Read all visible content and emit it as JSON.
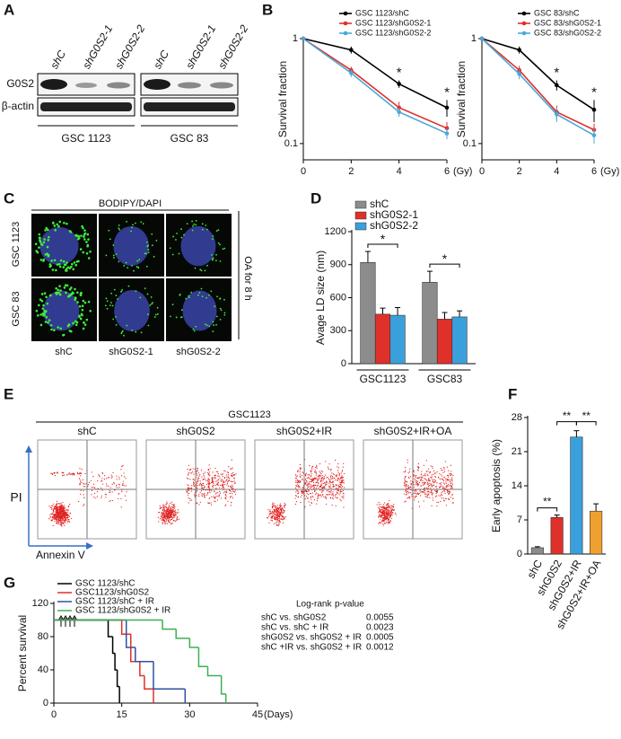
{
  "panel_labels": [
    "A",
    "B",
    "C",
    "D",
    "E",
    "F",
    "G"
  ],
  "blot": {
    "groups": [
      {
        "name": "GSC 1123",
        "lanes": [
          "shC",
          "shG0S2-1",
          "shG0S2-2"
        ]
      },
      {
        "name": "GSC 83",
        "lanes": [
          "shC",
          "shG0S2-1",
          "shG0S2-2"
        ]
      }
    ],
    "rows": [
      "G0S2",
      "β-actin"
    ]
  },
  "microscopy": {
    "title": "BODIPY/DAPI",
    "rows": [
      "GSC 1123",
      "GSC 83"
    ],
    "columns": [
      "shC",
      "shG0S2-1",
      "shG0S2-2"
    ],
    "side_label": "OA for 8 h"
  },
  "flow": {
    "group": "GSC1123",
    "columns": [
      "shC",
      "shG0S2",
      "shG0S2+IR",
      "shG0S2+IR+OA"
    ],
    "ylabel": "PI",
    "xlabel": "Annexin V"
  },
  "chart_data": [
    {
      "type": "line",
      "log_y": true,
      "ylabel": "Survival fraction",
      "xlabel": "(Gy)",
      "x": [
        0,
        2,
        4,
        6
      ],
      "xlim": [
        0,
        6
      ],
      "xticks": [
        0,
        2,
        4,
        6
      ],
      "ylim": [
        0.07,
        1
      ],
      "yticks": [
        0.1,
        1
      ],
      "series": [
        {
          "name": "GSC 1123/shC",
          "color": "#000000",
          "values": [
            1,
            0.78,
            0.37,
            0.22
          ],
          "errors": [
            0,
            0.06,
            0.03,
            0.04
          ]
        },
        {
          "name": "GSC 1123/shG0S2-1",
          "color": "#e0302a",
          "values": [
            1,
            0.5,
            0.22,
            0.14
          ],
          "errors": [
            0,
            0.04,
            0.03,
            0.02
          ]
        },
        {
          "name": "GSC 1123/shG0S2-2",
          "color": "#4aa8d8",
          "values": [
            1,
            0.47,
            0.2,
            0.125
          ],
          "errors": [
            0,
            0.04,
            0.02,
            0.015
          ]
        }
      ],
      "annotations": [
        {
          "text": "*",
          "x": 4
        },
        {
          "text": "*",
          "x": 6
        }
      ]
    },
    {
      "type": "line",
      "log_y": true,
      "ylabel": "Survival fraction",
      "xlabel": "(Gy)",
      "x": [
        0,
        2,
        4,
        6
      ],
      "xlim": [
        0,
        6
      ],
      "xticks": [
        0,
        2,
        4,
        6
      ],
      "ylim": [
        0.07,
        1
      ],
      "yticks": [
        0.1,
        1
      ],
      "series": [
        {
          "name": "GSC 83/shC",
          "color": "#000000",
          "values": [
            1,
            0.78,
            0.36,
            0.21
          ],
          "errors": [
            0,
            0.06,
            0.04,
            0.05
          ]
        },
        {
          "name": "GSC 83/shG0S2-1",
          "color": "#e0302a",
          "values": [
            1,
            0.5,
            0.2,
            0.135
          ],
          "errors": [
            0,
            0.05,
            0.03,
            0.02
          ]
        },
        {
          "name": "GSC 83/shG0S2-2",
          "color": "#4aa8d8",
          "values": [
            1,
            0.46,
            0.19,
            0.12
          ],
          "errors": [
            0,
            0.05,
            0.03,
            0.02
          ]
        }
      ],
      "annotations": [
        {
          "text": "*",
          "x": 4
        },
        {
          "text": "*",
          "x": 6
        }
      ]
    },
    {
      "type": "bar",
      "ylabel": "Avage LD size (nm)",
      "categories": [
        "GSC1123",
        "GSC83"
      ],
      "ylim": [
        0,
        1200
      ],
      "yticks": [
        0,
        300,
        600,
        900,
        1200
      ],
      "series": [
        {
          "name": "shC",
          "color": "#8c8c8c",
          "values": [
            920,
            740
          ],
          "errors": [
            100,
            100
          ]
        },
        {
          "name": "shG0S2-1",
          "color": "#e0302a",
          "values": [
            450,
            405
          ],
          "errors": [
            55,
            60
          ]
        },
        {
          "name": "shG0S2-2",
          "color": "#3aa0dc",
          "values": [
            440,
            425
          ],
          "errors": [
            70,
            55
          ]
        }
      ],
      "annotations": [
        "*",
        "*"
      ]
    },
    {
      "type": "bar",
      "ylabel": "Early apoptosis (%)",
      "categories": [
        "shC",
        "shG0S2",
        "shG0S2+IR",
        "shG0S2+IR+OA"
      ],
      "ylim": [
        0,
        28
      ],
      "yticks": [
        0,
        7,
        14,
        21,
        28
      ],
      "values": [
        1.3,
        7.5,
        24,
        8.8
      ],
      "errors": [
        0.2,
        0.5,
        1.3,
        1.5
      ],
      "colors": [
        "#8c8c8c",
        "#e0302a",
        "#3aa0dc",
        "#f0a030"
      ],
      "annotations": [
        "**",
        "**",
        "**"
      ]
    },
    {
      "type": "step",
      "ylabel": "Percent survival",
      "xlabel": "(Days)",
      "xlim": [
        0,
        45
      ],
      "xticks": [
        0,
        15,
        30,
        45
      ],
      "ylim": [
        0,
        120
      ],
      "yticks": [
        0,
        40,
        80,
        120
      ],
      "series": [
        {
          "name": "GSC 1123/shC",
          "color": "#000000",
          "x": [
            0,
            12,
            13,
            13.5,
            14,
            14.5
          ],
          "values": [
            100,
            80,
            60,
            40,
            20,
            0
          ]
        },
        {
          "name": "GSC1123/shG0S2",
          "color": "#e0302a",
          "x": [
            0,
            15,
            17,
            19,
            20,
            22
          ],
          "values": [
            100,
            83,
            50,
            33,
            17,
            0
          ]
        },
        {
          "name": "GSC 1123/shC + IR",
          "color": "#3050a0",
          "x": [
            0,
            16,
            18,
            22,
            29
          ],
          "values": [
            100,
            67,
            50,
            17,
            0
          ]
        },
        {
          "name": "GSC 1123/shG0S2 + IR",
          "color": "#3cb050",
          "x": [
            0,
            24,
            27,
            30,
            32,
            34,
            37,
            38
          ],
          "values": [
            100,
            89,
            78,
            67,
            44,
            33,
            11,
            0
          ]
        }
      ],
      "logrank": {
        "header": [
          "Log-rank",
          "p-value"
        ],
        "rows": [
          [
            "shC vs. shG0S2",
            "0.0055"
          ],
          [
            "shC vs. shC + IR",
            "0.0023"
          ],
          [
            "shG0S2 vs. shG0S2 + IR",
            "0.0005"
          ],
          [
            "shC +IR vs. shG0S2 + IR",
            "0.0012"
          ]
        ]
      }
    }
  ]
}
